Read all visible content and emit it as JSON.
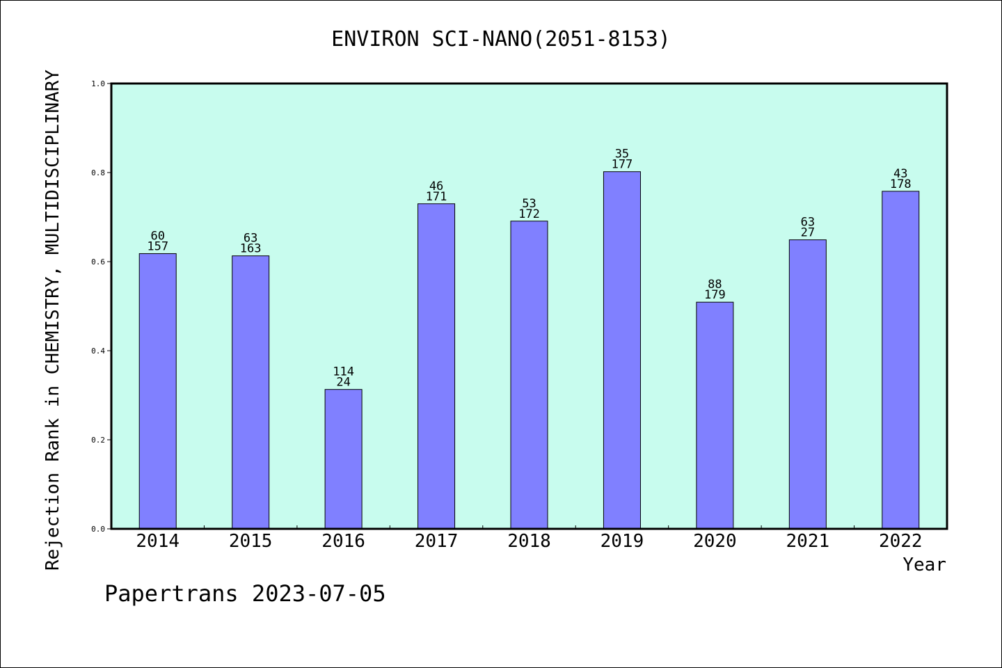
{
  "chart_data": {
    "type": "bar",
    "title": "ENVIRON SCI-NANO(2051-8153)",
    "xlabel": "Year",
    "ylabel": "Rejection Rank in CHEMISTRY, MULTIDISCIPLINARY",
    "categories": [
      "2014",
      "2015",
      "2016",
      "2017",
      "2018",
      "2019",
      "2020",
      "2021",
      "2022"
    ],
    "values": [
      0.618,
      0.613,
      0.313,
      0.73,
      0.691,
      0.802,
      0.509,
      0.649,
      0.758
    ],
    "labels_top": [
      "60",
      "63",
      "114",
      "46",
      "53",
      "35",
      "88",
      "63",
      "43"
    ],
    "labels_bottom": [
      "157",
      "163",
      "24",
      "171",
      "172",
      "177",
      "179",
      "27",
      "178"
    ],
    "ylim": [
      0.0,
      1.0
    ],
    "yticks": [
      "0.0",
      "0.2",
      "0.4",
      "0.6",
      "0.8",
      "1.0"
    ],
    "plot_background": "#c8fcee",
    "bar_color": "#8080ff",
    "grid": false
  },
  "footer": {
    "watermark": "Papertrans 2023-07-05"
  }
}
